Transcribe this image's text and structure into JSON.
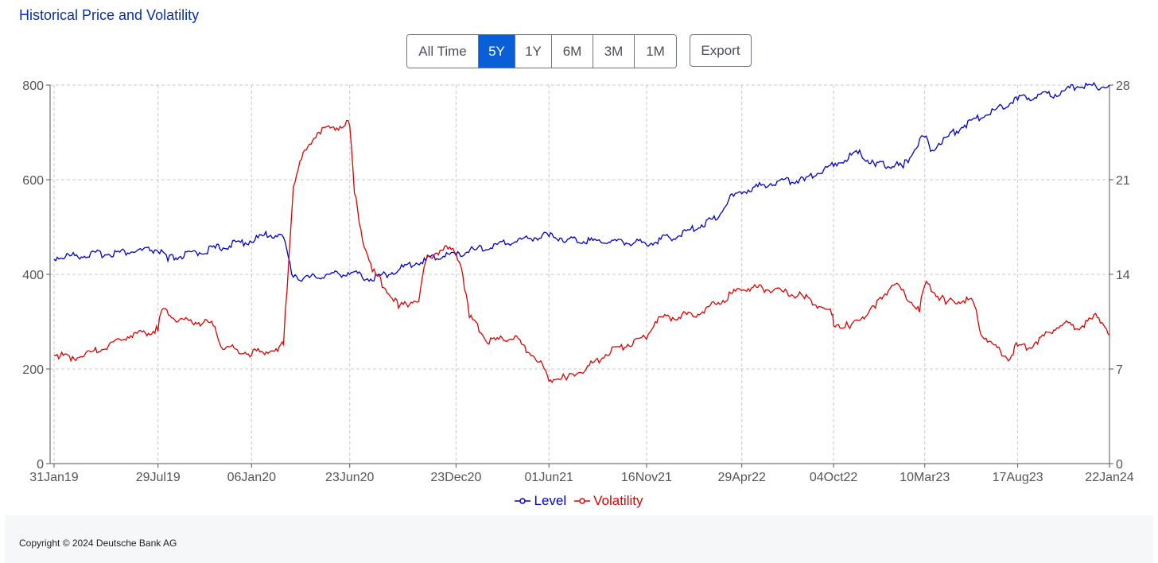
{
  "title": "Historical Price and Volatility",
  "range_buttons": [
    {
      "label": "All Time",
      "active": false
    },
    {
      "label": "5Y",
      "active": true
    },
    {
      "label": "1Y",
      "active": false
    },
    {
      "label": "6M",
      "active": false
    },
    {
      "label": "3M",
      "active": false
    },
    {
      "label": "1M",
      "active": false
    }
  ],
  "export_label": "Export",
  "footer_text": "Copyright © 2024 Deutsche Bank AG",
  "chart_data": {
    "type": "line",
    "title": "",
    "x_tick_labels": [
      "31Jan19",
      "29Jul19",
      "06Jan20",
      "23Jun20",
      "23Dec20",
      "01Jun21",
      "16Nov21",
      "29Apr22",
      "04Oct22",
      "10Mar23",
      "17Aug23",
      "22Jan24"
    ],
    "y_left": {
      "ticks": [
        0,
        200,
        400,
        600,
        800
      ],
      "range": [
        0,
        800
      ]
    },
    "y_right": {
      "ticks": [
        0,
        7,
        14,
        21,
        28
      ],
      "range": [
        0,
        28
      ]
    },
    "grid": true,
    "legend_position": "bottom",
    "series": [
      {
        "name": "Level",
        "axis": "left",
        "color": "#0000cc",
        "points": [
          [
            "31Jan19",
            432
          ],
          [
            "29Jul19",
            448
          ],
          [
            "15Aug19",
            428
          ],
          [
            "06Jan20",
            468
          ],
          [
            "05Feb20",
            480
          ],
          [
            "01Mar20",
            478
          ],
          [
            "15Mar20",
            400
          ],
          [
            "01Apr20",
            385
          ],
          [
            "01May20",
            392
          ],
          [
            "23Jun20",
            400
          ],
          [
            "15Jul20",
            392
          ],
          [
            "01Aug20",
            386
          ],
          [
            "01Sep20",
            400
          ],
          [
            "01Nov20",
            428
          ],
          [
            "23Dec20",
            440
          ],
          [
            "15Feb21",
            452
          ],
          [
            "01Apr21",
            466
          ],
          [
            "01Jun21",
            480
          ],
          [
            "01Jul21",
            470
          ],
          [
            "01Sep21",
            466
          ],
          [
            "16Nov21",
            462
          ],
          [
            "15Jan22",
            480
          ],
          [
            "15Mar22",
            515
          ],
          [
            "15Apr22",
            565
          ],
          [
            "29Apr22",
            570
          ],
          [
            "15Jun22",
            588
          ],
          [
            "15Aug22",
            598
          ],
          [
            "04Oct22",
            628
          ],
          [
            "15Nov22",
            655
          ],
          [
            "15Dec22",
            628
          ],
          [
            "01Feb23",
            625
          ],
          [
            "15Feb23",
            650
          ],
          [
            "10Mar23",
            690
          ],
          [
            "20Mar23",
            660
          ],
          [
            "15May23",
            710
          ],
          [
            "01Jul23",
            738
          ],
          [
            "17Aug23",
            768
          ],
          [
            "15Oct23",
            775
          ],
          [
            "01Dec23",
            795
          ],
          [
            "01Jan24",
            792
          ],
          [
            "22Jan24",
            800
          ]
        ]
      },
      {
        "name": "Volatility",
        "axis": "right",
        "color": "#e00000",
        "points": [
          [
            "31Jan19",
            8.0
          ],
          [
            "01Mar19",
            7.6
          ],
          [
            "15Apr19",
            8.2
          ],
          [
            "01Jun19",
            9.2
          ],
          [
            "29Jul19",
            9.8
          ],
          [
            "05Aug19",
            11.4
          ],
          [
            "01Sep19",
            10.5
          ],
          [
            "01Nov19",
            10.2
          ],
          [
            "15Nov19",
            8.6
          ],
          [
            "06Jan20",
            8.0
          ],
          [
            "20Feb20",
            8.3
          ],
          [
            "01Mar20",
            8.8
          ],
          [
            "10Mar20",
            15.0
          ],
          [
            "18Mar20",
            20.5
          ],
          [
            "01Apr20",
            22.5
          ],
          [
            "01May20",
            24.5
          ],
          [
            "23Jun20",
            25.0
          ],
          [
            "01Jul20",
            20.0
          ],
          [
            "15Jul20",
            16.5
          ],
          [
            "01Aug20",
            14.2
          ],
          [
            "15Sep20",
            11.5
          ],
          [
            "20Oct20",
            12.0
          ],
          [
            "01Nov20",
            15.0
          ],
          [
            "01Dec20",
            15.8
          ],
          [
            "23Dec20",
            15.5
          ],
          [
            "01Jan21",
            14.5
          ],
          [
            "15Jan21",
            10.8
          ],
          [
            "15Feb21",
            8.9
          ],
          [
            "01Apr21",
            9.2
          ],
          [
            "15May21",
            7.5
          ],
          [
            "01Jun21",
            6.1
          ],
          [
            "01Jul21",
            6.2
          ],
          [
            "01Aug21",
            6.8
          ],
          [
            "15Sep21",
            8.2
          ],
          [
            "16Nov21",
            9.2
          ],
          [
            "01Dec21",
            10.5
          ],
          [
            "15Feb22",
            11.0
          ],
          [
            "29Apr22",
            12.8
          ],
          [
            "15Jun22",
            12.8
          ],
          [
            "15Aug22",
            12.2
          ],
          [
            "01Oct22",
            11.0
          ],
          [
            "04Oct22",
            10.2
          ],
          [
            "01Nov22",
            10.0
          ],
          [
            "15Dec22",
            11.5
          ],
          [
            "15Jan23",
            13.2
          ],
          [
            "01Mar23",
            11.2
          ],
          [
            "10Mar23",
            13.2
          ],
          [
            "15Apr23",
            11.8
          ],
          [
            "01Jun23",
            12.0
          ],
          [
            "15Jun23",
            9.5
          ],
          [
            "01Aug23",
            7.6
          ],
          [
            "17Aug23",
            8.7
          ],
          [
            "01Sep23",
            8.4
          ],
          [
            "01Nov23",
            10.2
          ],
          [
            "01Dec23",
            9.9
          ],
          [
            "01Jan24",
            10.8
          ],
          [
            "22Jan24",
            9.5
          ]
        ]
      }
    ]
  }
}
